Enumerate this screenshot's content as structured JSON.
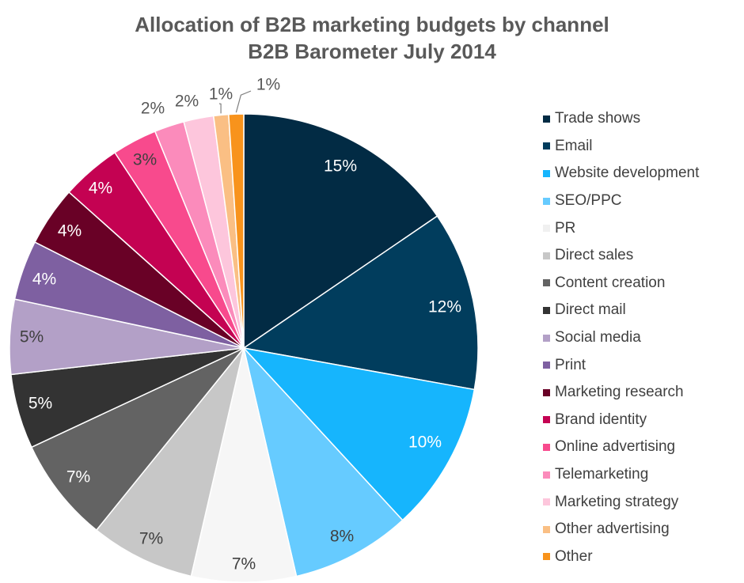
{
  "chart_data": {
    "type": "pie",
    "title": "Allocation of B2B marketing budgets by channel",
    "subtitle": "B2B Barometer July 2014",
    "legend_position": "right",
    "slices": [
      {
        "label": "Trade shows",
        "value": 15,
        "data_label": "15%",
        "color": "#022b44"
      },
      {
        "label": "Email",
        "value": 12,
        "data_label": "12%",
        "color": "#013d5d"
      },
      {
        "label": "Website development",
        "value": 10,
        "data_label": "10%",
        "color": "#16b5fd"
      },
      {
        "label": "SEO/PPC",
        "value": 8,
        "data_label": "8%",
        "color": "#66cbff"
      },
      {
        "label": "PR",
        "value": 7,
        "data_label": "7%",
        "color": "#f6f6f6"
      },
      {
        "label": "Direct sales",
        "value": 7,
        "data_label": "7%",
        "color": "#c7c7c7"
      },
      {
        "label": "Content creation",
        "value": 7,
        "data_label": "7%",
        "color": "#636363"
      },
      {
        "label": "Direct mail",
        "value": 5,
        "data_label": "5%",
        "color": "#333333"
      },
      {
        "label": "Social media",
        "value": 5,
        "data_label": "5%",
        "color": "#b3a0c7"
      },
      {
        "label": "Print",
        "value": 4,
        "data_label": "4%",
        "color": "#7e60a1"
      },
      {
        "label": "Marketing research",
        "value": 4,
        "data_label": "4%",
        "color": "#690126"
      },
      {
        "label": "Brand identity",
        "value": 4,
        "data_label": "4%",
        "color": "#c40252"
      },
      {
        "label": "Online advertising",
        "value": 3,
        "data_label": "3%",
        "color": "#f84a8d"
      },
      {
        "label": "Telemarketing",
        "value": 2,
        "data_label": "2%",
        "color": "#fb8bbb"
      },
      {
        "label": "Marketing strategy",
        "value": 2,
        "data_label": "2%",
        "color": "#fdc6dc"
      },
      {
        "label": "Other advertising",
        "value": 1,
        "data_label": "1%",
        "color": "#fabf84"
      },
      {
        "label": "Other",
        "value": 1,
        "data_label": "1%",
        "color": "#f8931c"
      }
    ]
  }
}
